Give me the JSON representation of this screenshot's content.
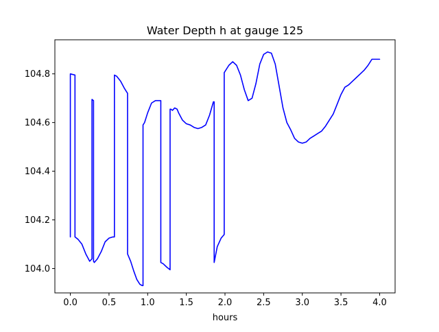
{
  "chart_data": {
    "type": "line",
    "title": "Water Depth h at gauge 125",
    "xlabel": "hours",
    "ylabel": "",
    "xlim": [
      -0.2,
      4.2
    ],
    "ylim": [
      103.9,
      104.94
    ],
    "xticks": [
      0.0,
      0.5,
      1.0,
      1.5,
      2.0,
      2.5,
      3.0,
      3.5,
      4.0
    ],
    "xtick_labels": [
      "0.0",
      "0.5",
      "1.0",
      "1.5",
      "2.0",
      "2.5",
      "3.0",
      "3.5",
      "4.0"
    ],
    "yticks": [
      104.0,
      104.2,
      104.4,
      104.6,
      104.8
    ],
    "ytick_labels": [
      "104.0",
      "104.2",
      "104.4",
      "104.6",
      "104.8"
    ],
    "grid": false,
    "colors": {
      "line": "#0000ff",
      "axes": "#000000",
      "background": "#ffffff"
    },
    "series": [
      {
        "x": [
          0.0,
          0.0,
          0.0,
          0.06,
          0.06,
          0.1,
          0.15,
          0.2,
          0.25,
          0.28,
          0.28,
          0.3,
          0.3,
          0.31,
          0.35,
          0.4,
          0.45,
          0.5,
          0.55,
          0.57,
          0.57,
          0.6,
          0.65,
          0.7,
          0.74,
          0.74,
          0.78,
          0.82,
          0.86,
          0.9,
          0.93,
          0.94,
          0.94,
          0.96,
          1.0,
          1.05,
          1.1,
          1.15,
          1.17,
          1.17,
          1.2,
          1.25,
          1.29,
          1.29,
          1.3,
          1.32,
          1.35,
          1.38,
          1.4,
          1.45,
          1.5,
          1.55,
          1.6,
          1.65,
          1.7,
          1.75,
          1.8,
          1.85,
          1.86,
          1.86,
          1.9,
          1.95,
          1.99,
          1.99,
          2.05,
          2.1,
          2.15,
          2.2,
          2.25,
          2.3,
          2.35,
          2.4,
          2.45,
          2.5,
          2.55,
          2.6,
          2.65,
          2.7,
          2.75,
          2.8,
          2.85,
          2.9,
          2.95,
          3.0,
          3.05,
          3.1,
          3.15,
          3.2,
          3.25,
          3.3,
          3.35,
          3.4,
          3.45,
          3.5,
          3.55,
          3.6,
          3.65,
          3.7,
          3.75,
          3.8,
          3.85,
          3.88,
          3.9,
          3.92,
          3.95,
          4.0
        ],
        "y": [
          104.16,
          104.13,
          104.8,
          104.795,
          104.13,
          104.12,
          104.1,
          104.06,
          104.03,
          104.04,
          104.695,
          104.69,
          104.03,
          104.025,
          104.04,
          104.07,
          104.11,
          104.125,
          104.13,
          104.13,
          104.795,
          104.79,
          104.77,
          104.74,
          104.72,
          104.06,
          104.03,
          103.99,
          103.955,
          103.935,
          103.93,
          103.93,
          104.59,
          104.6,
          104.64,
          104.68,
          104.69,
          104.69,
          104.69,
          104.025,
          104.02,
          104.005,
          103.995,
          104.655,
          104.655,
          104.65,
          104.66,
          104.655,
          104.64,
          104.61,
          104.595,
          104.59,
          104.58,
          104.575,
          104.58,
          104.59,
          104.63,
          104.685,
          104.685,
          104.025,
          104.09,
          104.125,
          104.14,
          104.805,
          104.835,
          104.85,
          104.835,
          104.795,
          104.735,
          104.69,
          104.7,
          104.76,
          104.84,
          104.88,
          104.89,
          104.885,
          104.84,
          104.75,
          104.66,
          104.6,
          104.57,
          104.535,
          104.52,
          104.515,
          104.52,
          104.535,
          104.545,
          104.555,
          104.565,
          104.585,
          104.61,
          104.635,
          104.675,
          104.715,
          104.745,
          104.755,
          104.77,
          104.785,
          104.8,
          104.815,
          104.835,
          104.85,
          104.86,
          104.86,
          104.86,
          104.86
        ]
      }
    ]
  }
}
